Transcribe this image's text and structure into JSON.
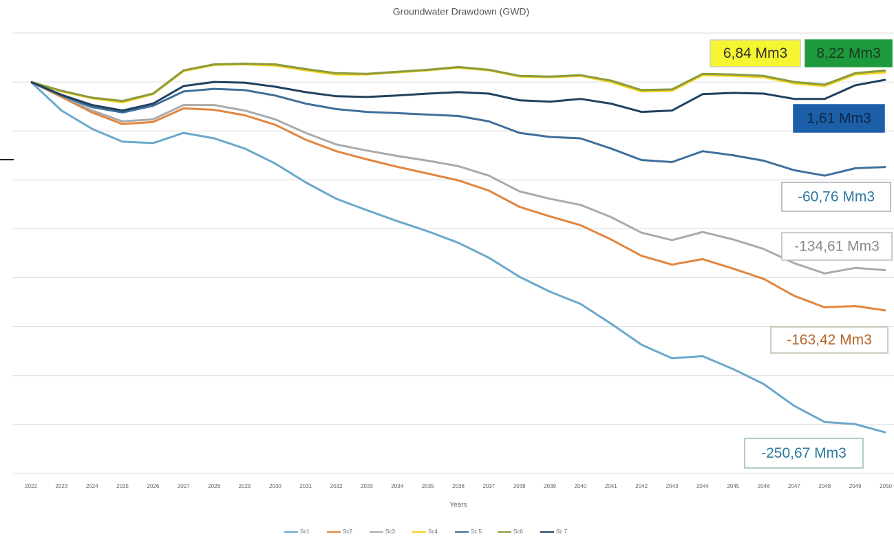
{
  "chart_data": {
    "type": "line",
    "title": "Groundwater Drawdown (GWD)",
    "x_label": "Years",
    "x": [
      2022,
      2023,
      2024,
      2025,
      2026,
      2027,
      2028,
      2029,
      2030,
      2031,
      2032,
      2033,
      2034,
      2035,
      2036,
      2037,
      2038,
      2039,
      2040,
      2041,
      2042,
      2043,
      2044,
      2045,
      2046,
      2047,
      2048,
      2049,
      2050
    ],
    "xlim": [
      2022,
      2050
    ],
    "xticks": [
      2022,
      2023,
      2024,
      2025,
      2026,
      2027,
      2028,
      2029,
      2030,
      2031,
      2032,
      2033,
      2034,
      2035,
      2036,
      2037,
      2038,
      2039,
      2040,
      2041,
      2042,
      2043,
      2044,
      2045,
      2046,
      2047,
      2048,
      2049,
      2050
    ],
    "ylim": [
      -280,
      35
    ],
    "yticks": [
      35,
      0,
      -35,
      -70,
      -105,
      -140,
      -175,
      -210,
      -245,
      -280
    ],
    "grid": true,
    "legend": "bottom",
    "series": [
      {
        "name": "Sc1",
        "color": "#6aa8cc",
        "values": [
          0,
          -20.4,
          -33.5,
          -42.7,
          -43.7,
          -36.4,
          -40.3,
          -47.6,
          -58.3,
          -71.8,
          -83.5,
          -91.7,
          -99.5,
          -106.8,
          -115,
          -125.7,
          -139.3,
          -150,
          -158.7,
          -172.8,
          -187.9,
          -197.6,
          -196.1,
          -205.3,
          -216,
          -231.6,
          -243.2,
          -244.7,
          -250.67
        ],
        "value_labels": [
          null,
          null,
          null,
          null,
          null,
          null,
          null,
          null,
          null,
          null,
          null,
          null,
          null,
          null,
          null,
          null,
          null,
          null,
          null,
          null,
          null,
          null,
          null,
          null,
          null,
          null,
          null,
          null,
          "-250,67 Mm3"
        ]
      },
      {
        "name": "Sc2",
        "color": "#e2853f",
        "values": [
          0,
          -10.7,
          -21.8,
          -30.1,
          -28.6,
          -18.9,
          -19.9,
          -23.8,
          -30.6,
          -41.3,
          -49.5,
          -55.3,
          -60.7,
          -65.5,
          -70.4,
          -77.7,
          -89.3,
          -96.1,
          -102.4,
          -112.6,
          -124.3,
          -130.6,
          -126.7,
          -133.5,
          -140.8,
          -152.9,
          -161.2,
          -160.2,
          -163.42
        ],
        "value_labels": [
          null,
          null,
          null,
          null,
          null,
          null,
          null,
          null,
          null,
          null,
          null,
          null,
          null,
          null,
          null,
          null,
          null,
          null,
          null,
          null,
          null,
          null,
          null,
          null,
          null,
          null,
          null,
          null,
          "-163,42 Mm3"
        ]
      },
      {
        "name": "Sc3",
        "color": "#aaaaaa",
        "values": [
          0,
          -9.7,
          -20.4,
          -28.2,
          -26.7,
          -16.5,
          -16.5,
          -20.4,
          -26.7,
          -36.4,
          -44.7,
          -49,
          -52.9,
          -56.3,
          -60.2,
          -67,
          -78.2,
          -83.5,
          -87.9,
          -96.6,
          -107.8,
          -113.1,
          -107.3,
          -112.6,
          -119.4,
          -129.6,
          -136.9,
          -133,
          -134.61
        ],
        "value_labels": [
          null,
          null,
          null,
          null,
          null,
          null,
          null,
          null,
          null,
          null,
          null,
          null,
          null,
          null,
          null,
          null,
          null,
          null,
          null,
          null,
          null,
          null,
          null,
          null,
          null,
          null,
          null,
          null,
          "-134,61 Mm3"
        ]
      },
      {
        "name": "Sc4",
        "color": "#f2d31b",
        "values": [
          0,
          -6.8,
          -11.7,
          -14.6,
          -8.7,
          7.8,
          12.1,
          12.6,
          11.7,
          8.3,
          5.3,
          5.3,
          6.8,
          8.3,
          10.2,
          8.3,
          3.9,
          3.4,
          4.4,
          0,
          -6.8,
          -6.3,
          4.9,
          4.4,
          3.4,
          -1,
          -2.9,
          5.3,
          6.84
        ],
        "value_labels": [
          null,
          null,
          null,
          null,
          null,
          null,
          null,
          null,
          null,
          null,
          null,
          null,
          null,
          null,
          null,
          null,
          null,
          null,
          null,
          null,
          null,
          null,
          null,
          null,
          null,
          null,
          null,
          null,
          "6,84 Mm3"
        ]
      },
      {
        "name": "Sc 5",
        "color": "#3f6f9c",
        "values": [
          0,
          -9.7,
          -18,
          -21.8,
          -17,
          -6.8,
          -4.9,
          -5.8,
          -9.7,
          -15.5,
          -19.4,
          -21.4,
          -22.3,
          -23.3,
          -24.3,
          -28.2,
          -36.4,
          -39.3,
          -40.3,
          -47.6,
          -55.8,
          -57.3,
          -49.5,
          -52.4,
          -56.3,
          -63.1,
          -67,
          -61.7,
          -60.76
        ],
        "value_labels": [
          null,
          null,
          null,
          null,
          null,
          null,
          null,
          null,
          null,
          null,
          null,
          null,
          null,
          null,
          null,
          null,
          null,
          null,
          null,
          null,
          null,
          null,
          null,
          null,
          null,
          null,
          null,
          null,
          "-60,76 Mm3"
        ]
      },
      {
        "name": "Sc6",
        "color": "#8c9a3e",
        "values": [
          0,
          -6.3,
          -11.2,
          -13.6,
          -8.3,
          8.3,
          12.6,
          13.1,
          12.6,
          9.2,
          6.3,
          5.8,
          7.3,
          8.7,
          10.7,
          8.7,
          4.4,
          3.9,
          4.9,
          1,
          -5.8,
          -5.3,
          5.8,
          5.3,
          4.4,
          0,
          -1.9,
          6.3,
          8.22
        ],
        "value_labels": [
          null,
          null,
          null,
          null,
          null,
          null,
          null,
          null,
          null,
          null,
          null,
          null,
          null,
          null,
          null,
          null,
          null,
          null,
          null,
          null,
          null,
          null,
          null,
          null,
          null,
          null,
          null,
          null,
          "8,22 Mm3"
        ]
      },
      {
        "name": "Sc 7",
        "color": "#21405e",
        "values": [
          0,
          -9.2,
          -16.5,
          -20.4,
          -15.5,
          -2.9,
          0,
          -0.5,
          -3.4,
          -7.3,
          -10.2,
          -10.7,
          -9.7,
          -8.3,
          -7.3,
          -8.3,
          -13.1,
          -14.1,
          -12.1,
          -15.5,
          -21.4,
          -20.4,
          -8.7,
          -7.8,
          -8.3,
          -12.1,
          -12.1,
          -2.4,
          1.61
        ],
        "value_labels": [
          null,
          null,
          null,
          null,
          null,
          null,
          null,
          null,
          null,
          null,
          null,
          null,
          null,
          null,
          null,
          null,
          null,
          null,
          null,
          null,
          null,
          null,
          null,
          null,
          null,
          null,
          null,
          null,
          "1,61 Mm3"
        ]
      }
    ]
  }
}
